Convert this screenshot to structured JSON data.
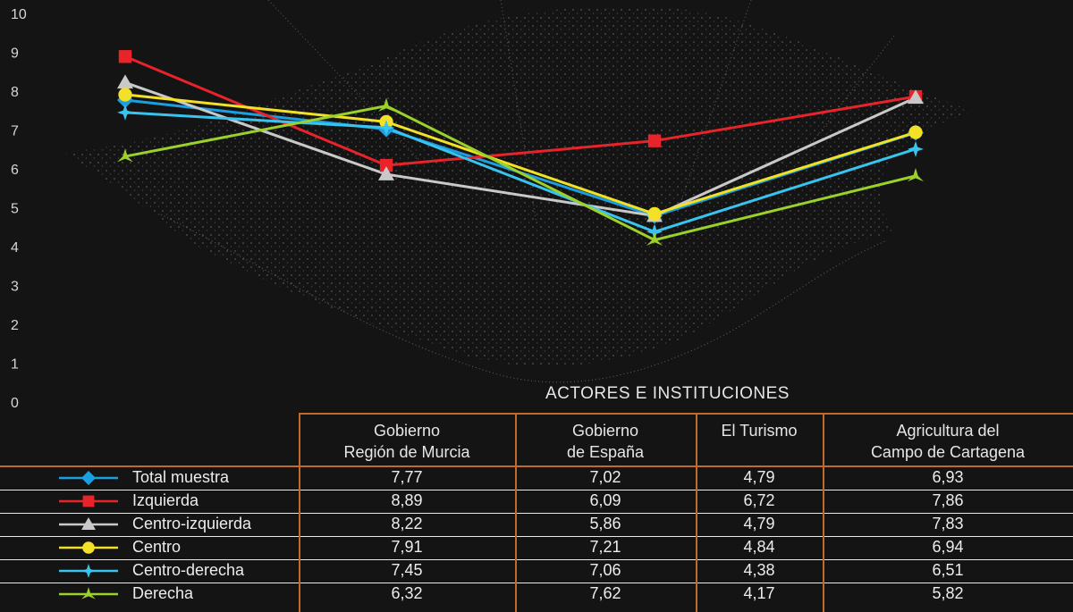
{
  "chart_data": {
    "type": "line",
    "title": "ACTORES E INSTITUCIONES",
    "categories": [
      [
        "Gobierno",
        "Región de Murcia"
      ],
      [
        "Gobierno",
        "de España"
      ],
      [
        "El Turismo",
        ""
      ],
      [
        "Agricultura del",
        "Campo de Cartagena"
      ]
    ],
    "ylim": [
      0,
      10
    ],
    "yticks": [
      "0",
      "1",
      "2",
      "3",
      "4",
      "5",
      "6",
      "7",
      "8",
      "9",
      "10"
    ],
    "series": [
      {
        "name": "Total muestra",
        "color": "#1a9fe0",
        "marker": "diamond",
        "values": [
          7.77,
          7.02,
          4.79,
          6.93
        ],
        "labels": [
          "7,77",
          "7,02",
          "4,79",
          "6,93"
        ]
      },
      {
        "name": "Izquierda",
        "color": "#e8232a",
        "marker": "square",
        "values": [
          8.89,
          6.09,
          6.72,
          7.86
        ],
        "labels": [
          "8,89",
          "6,09",
          "6,72",
          "7,86"
        ]
      },
      {
        "name": "Centro-izquierda",
        "color": "#c9c9c9",
        "marker": "triangle",
        "values": [
          8.22,
          5.86,
          4.79,
          7.83
        ],
        "labels": [
          "8,22",
          "5,86",
          "4,79",
          "7,83"
        ]
      },
      {
        "name": "Centro",
        "color": "#f2e126",
        "marker": "circle",
        "values": [
          7.91,
          7.21,
          4.84,
          6.94
        ],
        "labels": [
          "7,91",
          "7,21",
          "4,84",
          "6,94"
        ]
      },
      {
        "name": "Centro-derecha",
        "color": "#39c4f0",
        "marker": "star",
        "values": [
          7.45,
          7.06,
          4.38,
          6.51
        ],
        "labels": [
          "7,45",
          "7,06",
          "4,38",
          "6,51"
        ]
      },
      {
        "name": "Derecha",
        "color": "#9bd12a",
        "marker": "tri-star",
        "values": [
          6.32,
          7.62,
          4.17,
          5.82
        ],
        "labels": [
          "6,32",
          "7,62",
          "4,17",
          "5,82"
        ]
      }
    ],
    "grid": false,
    "legend": "bottom-left table"
  }
}
